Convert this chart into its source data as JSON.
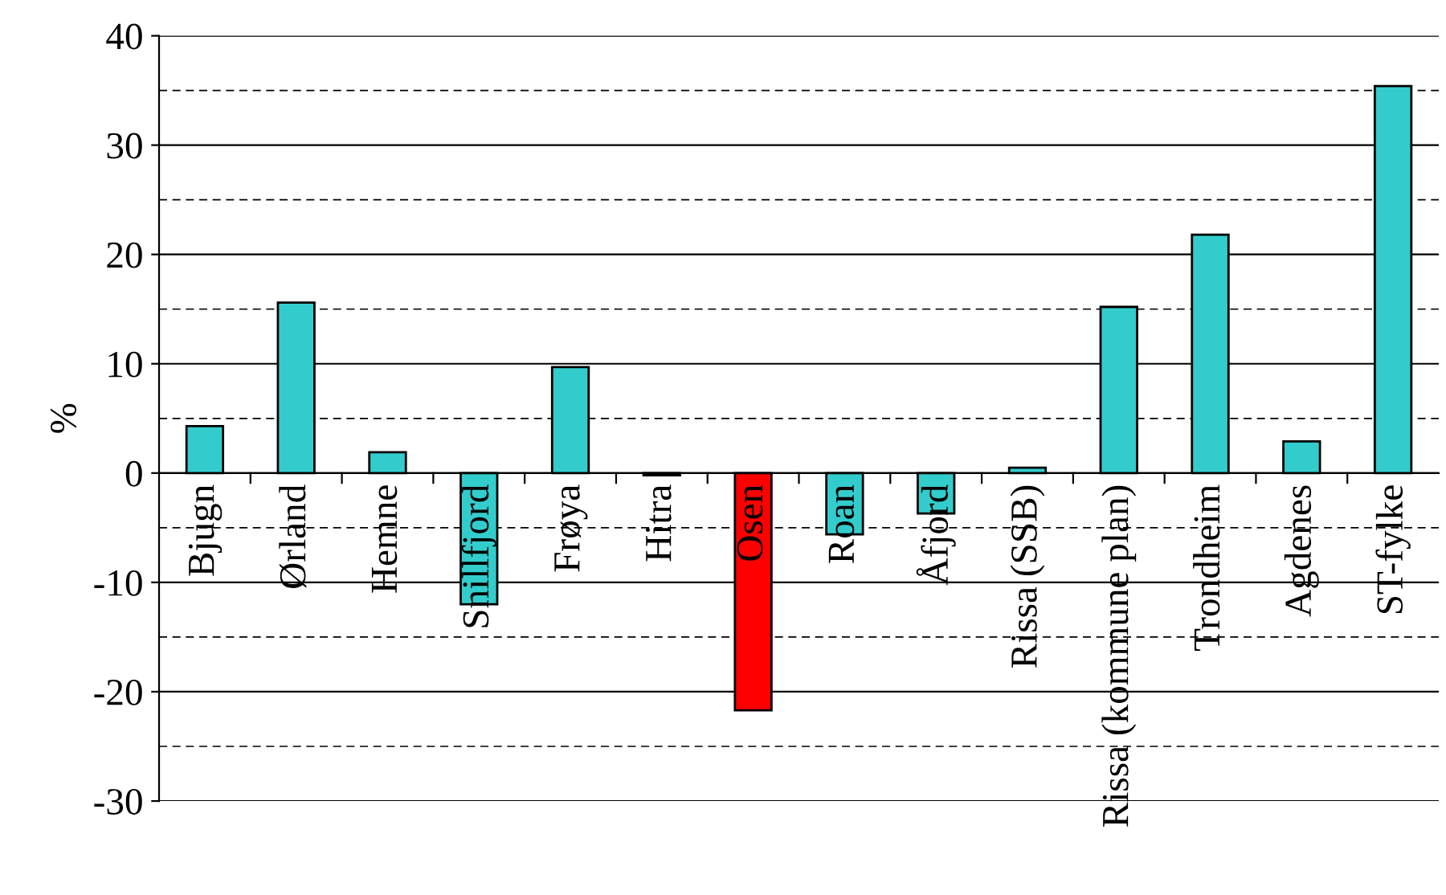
{
  "chart_data": {
    "type": "bar",
    "ylabel": "%",
    "categories": [
      "Bjugn",
      "Ørland",
      "Hemne",
      "Snillfjord",
      "Frøya",
      "Hitra",
      "Osen",
      "Roan",
      "Åfjord",
      "Rissa (SSB)",
      "Rissa (kommune plan)",
      "Trondheim",
      "Agdenes",
      "ST-fylke"
    ],
    "values": [
      4.3,
      15.6,
      1.9,
      -12.0,
      9.7,
      -0.2,
      -21.7,
      -5.6,
      -3.7,
      0.5,
      15.2,
      21.8,
      2.9,
      35.4
    ],
    "colors": [
      "#33cccc",
      "#33cccc",
      "#33cccc",
      "#33cccc",
      "#33cccc",
      "#33cccc",
      "#ff0000",
      "#33cccc",
      "#33cccc",
      "#33cccc",
      "#33cccc",
      "#33cccc",
      "#33cccc",
      "#33cccc"
    ],
    "ylim": [
      -30,
      40
    ],
    "yticks": [
      -30,
      -20,
      -10,
      0,
      10,
      20,
      30,
      40
    ],
    "grid": "y",
    "legend": false,
    "ref_lines": [
      {
        "axis": "y",
        "value": 35,
        "color": "#000000",
        "line_style": "dashed"
      },
      {
        "axis": "y",
        "value": 25,
        "color": "#000000",
        "line_style": "dashed"
      },
      {
        "axis": "y",
        "value": 15,
        "color": "#000000",
        "line_style": "dashed"
      },
      {
        "axis": "y",
        "value": 5,
        "color": "#000000",
        "line_style": "dashed"
      },
      {
        "axis": "y",
        "value": -5,
        "color": "#000000",
        "line_style": "dashed"
      },
      {
        "axis": "y",
        "value": -15,
        "color": "#000000",
        "line_style": "dashed"
      },
      {
        "axis": "y",
        "value": -25,
        "color": "#000000",
        "line_style": "dashed"
      }
    ]
  }
}
